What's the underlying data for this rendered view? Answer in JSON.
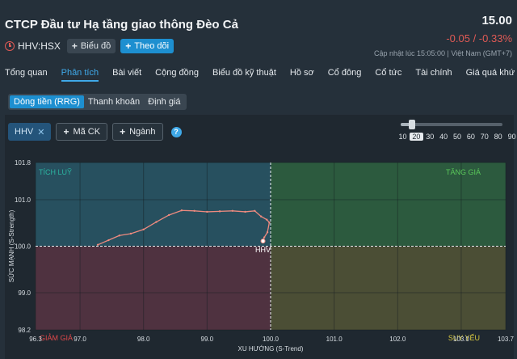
{
  "company": {
    "name": "CTCP Đầu tư Hạ tầng giao thông Đèo Cả",
    "ticker": "HHV:HSX"
  },
  "quote": {
    "price": "15.00",
    "change": "-0.05 / -0.33%",
    "updated": "Cập nhật lúc  15:05:00 | Việt Nam (GMT+7)"
  },
  "header_buttons": {
    "chart": "Biểu đồ",
    "follow": "Theo dõi"
  },
  "tabs": [
    "Tổng quan",
    "Phân tích",
    "Bài viết",
    "Cộng đồng",
    "Biểu đồ kỹ thuật",
    "Hồ sơ",
    "Cổ đông",
    "Cổ tức",
    "Tài chính",
    "Giá quá khứ"
  ],
  "subtabs": [
    "Dòng tiền (RRG)",
    "Thanh khoản",
    "Định giá"
  ],
  "filters": {
    "selected": "HHV",
    "add_ticker": "Mã CK",
    "add_industry": "Ngành"
  },
  "slider": {
    "options": [
      "10",
      "20",
      "30",
      "40",
      "50",
      "60",
      "70",
      "80",
      "90"
    ],
    "selected": "20"
  },
  "colors": {
    "accent": "#1d8fd0",
    "down": "#e05a55",
    "trail": "#ee8a7f"
  },
  "chart_data": {
    "type": "scatter",
    "xlabel": "XU HƯỚNG (S-Trend)",
    "ylabel": "SỨC MẠNH (S-Strength)",
    "xlim": [
      96.3,
      103.7
    ],
    "ylim": [
      98.2,
      101.8
    ],
    "xticks": [
      "96.3",
      "97.0",
      "98.0",
      "99.0",
      "100.0",
      "101.0",
      "102.0",
      "103.0",
      "103.7"
    ],
    "yticks": [
      "101.8",
      "101.0",
      "100.0",
      "99.0",
      "98.2"
    ],
    "quadrants": {
      "top_left": "TÍCH LUỸ",
      "top_right": "TĂNG GIÁ",
      "bottom_left": "GIẢM GIÁ",
      "bottom_right": "SUY YẾU"
    },
    "series": [
      {
        "name": "HHV",
        "x": [
          97.28,
          97.45,
          97.62,
          97.8,
          98.0,
          98.2,
          98.4,
          98.6,
          98.8,
          99.0,
          99.2,
          99.4,
          99.6,
          99.75,
          99.85,
          99.94,
          99.98,
          99.95,
          99.9,
          99.88
        ],
        "y": [
          100.03,
          100.13,
          100.23,
          100.27,
          100.36,
          100.52,
          100.67,
          100.77,
          100.76,
          100.74,
          100.75,
          100.76,
          100.74,
          100.76,
          100.64,
          100.57,
          100.51,
          100.3,
          100.19,
          100.11
        ]
      }
    ]
  }
}
